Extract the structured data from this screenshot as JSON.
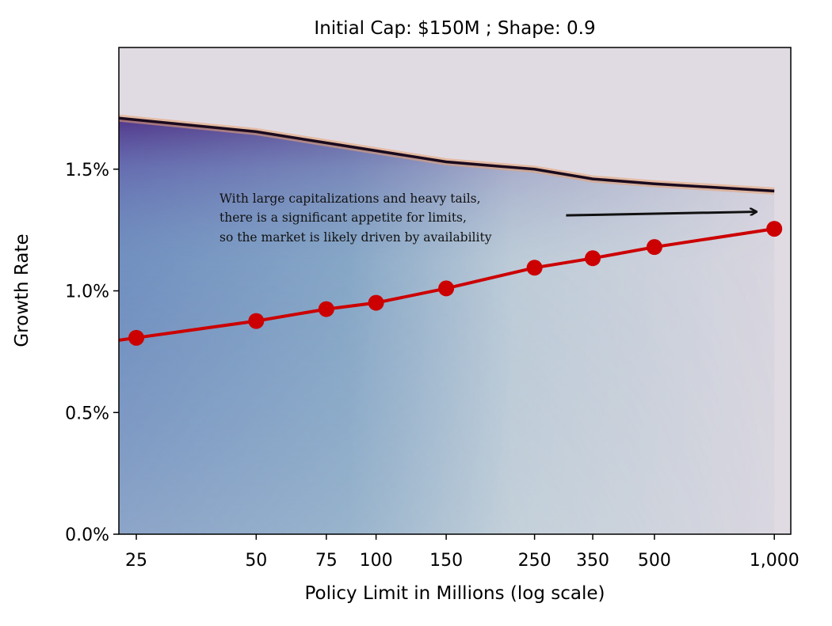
{
  "chart_data": {
    "type": "heatmap",
    "title": "Initial Cap: $150M ; Shape: 0.9",
    "xlabel": "Policy Limit in Millions (log scale)",
    "ylabel": "Growth Rate",
    "x_scale": "log",
    "xlim": [
      22.6,
      1100
    ],
    "ylim": [
      0,
      2.0
    ],
    "x_ticks": [
      25,
      50,
      75,
      100,
      150,
      250,
      350,
      500,
      1000
    ],
    "x_tick_labels": [
      "25",
      "50",
      "75",
      "100",
      "150",
      "250",
      "350",
      "500",
      "1,000"
    ],
    "y_ticks": [
      0,
      0.5,
      1.0,
      1.5
    ],
    "y_tick_labels": [
      "0.0%",
      "0.5%",
      "1.0%",
      "1.5%"
    ],
    "grid": false,
    "series": [
      {
        "type": "line",
        "color": "#cc0000",
        "x": [
          25,
          50,
          75,
          100,
          150,
          250,
          350,
          500,
          1000
        ],
        "y": [
          0.807,
          0.876,
          0.925,
          0.951,
          1.01,
          1.095,
          1.134,
          1.18,
          1.255
        ]
      }
    ],
    "heatmap_boundary": {
      "x": [
        22.6,
        50,
        75,
        150,
        250,
        350,
        500,
        1000
      ],
      "y": [
        1.71,
        1.654,
        1.608,
        1.53,
        1.5,
        1.46,
        1.44,
        1.41
      ]
    },
    "colors": {
      "background": "#e0dbe3",
      "high": "#4a1f7a",
      "mid": "#6f90c0",
      "low": "#dcd8e0",
      "edge": "#1a0a1e",
      "glow": "#e8a070"
    },
    "annotation": {
      "lines": [
        "With large capitalizations and heavy tails,",
        "there is a significant appetite for limits,",
        "so the market is likely driven by availability"
      ],
      "arrow_from": [
        300,
        1.31
      ],
      "arrow_to": [
        900,
        1.325
      ]
    }
  }
}
